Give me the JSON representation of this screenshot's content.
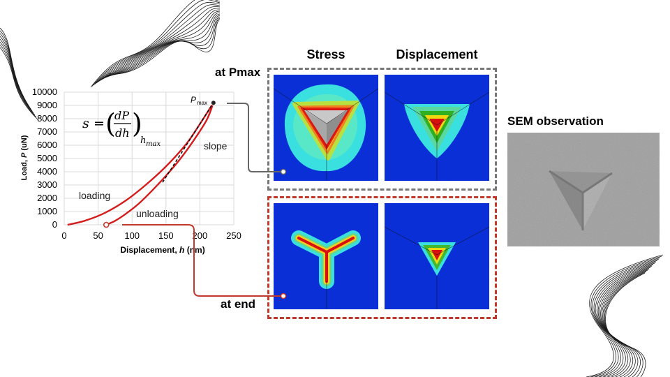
{
  "columns": {
    "stress": "Stress",
    "displacement": "Displacement"
  },
  "rows": {
    "pmax": "at Pmax",
    "end": "at end"
  },
  "sem": {
    "title": "SEM observation"
  },
  "formula": {
    "s": "s",
    "eq": "=",
    "dP": "dP",
    "dh": "dh",
    "sub": "h",
    "subsub": "max"
  },
  "chart_data": {
    "type": "line",
    "xlabel_prefix": "Displacement, ",
    "xlabel_var": "h",
    "xlabel_unit": " (nm)",
    "ylabel_prefix": "Load, ",
    "ylabel_var": "P",
    "ylabel_unit": " (uN)",
    "xlim": [
      0,
      250
    ],
    "ylim": [
      0,
      10000
    ],
    "xticks": [
      "0",
      "50",
      "100",
      "150",
      "200",
      "250"
    ],
    "yticks": [
      "0",
      "1000",
      "2000",
      "3000",
      "4000",
      "5000",
      "6000",
      "7000",
      "8000",
      "9000",
      "10000"
    ],
    "grid": true,
    "series": [
      {
        "name": "loading",
        "x": [
          5,
          30,
          60,
          90,
          120,
          150,
          180,
          200,
          220
        ],
        "y": [
          0,
          300,
          900,
          1800,
          3000,
          4400,
          6100,
          7600,
          9200
        ]
      },
      {
        "name": "unloading",
        "x": [
          220,
          210,
          190,
          170,
          150,
          130,
          110,
          90,
          75,
          62
        ],
        "y": [
          9200,
          7900,
          6300,
          4900,
          3700,
          2600,
          1600,
          800,
          300,
          0
        ]
      }
    ],
    "slope_line": {
      "x": [
        145,
        220
      ],
      "y": [
        3200,
        9200
      ]
    },
    "annotations": {
      "pmax": "P",
      "pmax_sub": "max",
      "slope": "slope",
      "loading": "loading",
      "unloading": "unloading"
    },
    "marker_points": {
      "pmax": {
        "x": 220,
        "y": 9200
      },
      "end": {
        "x": 62,
        "y": 0
      }
    }
  }
}
